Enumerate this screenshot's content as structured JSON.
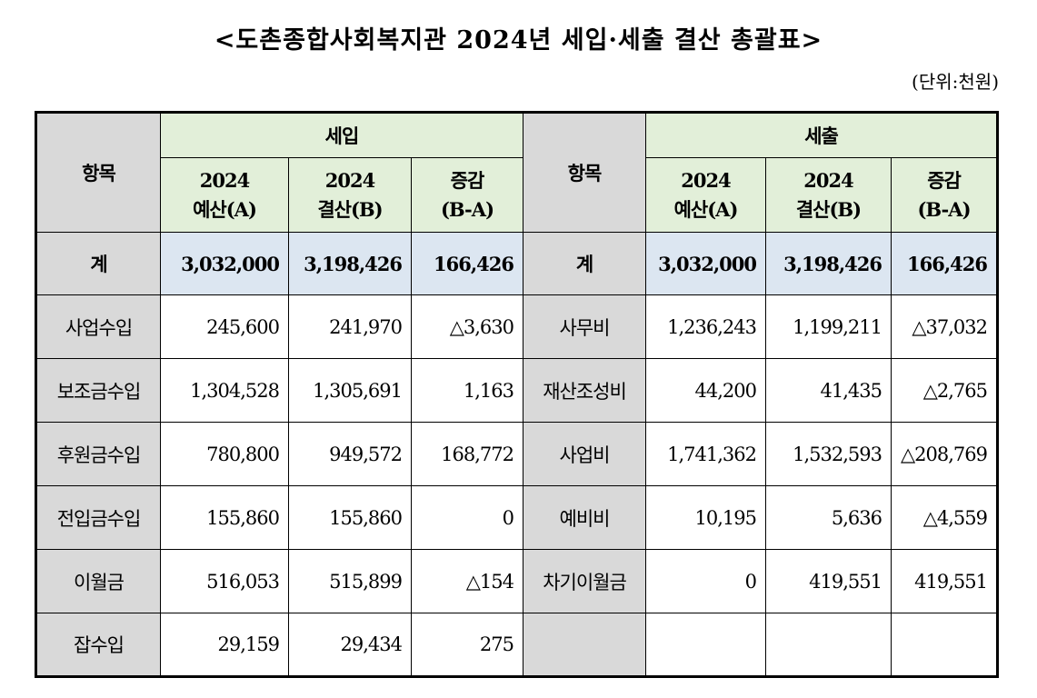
{
  "title": "<도촌종합사회복지관 2024년 세입·세출 결산 총괄표>",
  "unit": "(단위:천원)",
  "header": {
    "item_label": "항목",
    "revenue_label": "세입",
    "expense_label": "세출",
    "col_budget": [
      "2024",
      "예산(A)"
    ],
    "col_settle": [
      "2024",
      "결산(B)"
    ],
    "col_diff": [
      "증감",
      "(B-A)"
    ]
  },
  "total": {
    "label": "계",
    "rev_budget": "3,032,000",
    "rev_settle": "3,198,426",
    "rev_diff": "166,426",
    "exp_budget": "3,032,000",
    "exp_settle": "3,198,426",
    "exp_diff": "166,426"
  },
  "rows": [
    {
      "rev_item": "사업수입",
      "rev_budget": "245,600",
      "rev_settle": "241,970",
      "rev_diff": "△3,630",
      "exp_item": "사무비",
      "exp_budget": "1,236,243",
      "exp_settle": "1,199,211",
      "exp_diff": "△37,032"
    },
    {
      "rev_item": "보조금수입",
      "rev_budget": "1,304,528",
      "rev_settle": "1,305,691",
      "rev_diff": "1,163",
      "exp_item": "재산조성비",
      "exp_budget": "44,200",
      "exp_settle": "41,435",
      "exp_diff": "△2,765"
    },
    {
      "rev_item": "후원금수입",
      "rev_budget": "780,800",
      "rev_settle": "949,572",
      "rev_diff": "168,772",
      "exp_item": "사업비",
      "exp_budget": "1,741,362",
      "exp_settle": "1,532,593",
      "exp_diff": "△208,769"
    },
    {
      "rev_item": "전입금수입",
      "rev_budget": "155,860",
      "rev_settle": "155,860",
      "rev_diff": "0",
      "exp_item": "예비비",
      "exp_budget": "10,195",
      "exp_settle": "5,636",
      "exp_diff": "△4,559"
    },
    {
      "rev_item": "이월금",
      "rev_budget": "516,053",
      "rev_settle": "515,899",
      "rev_diff": "△154",
      "exp_item": "차기이월금",
      "exp_budget": "0",
      "exp_settle": "419,551",
      "exp_diff": "419,551"
    },
    {
      "rev_item": "잡수입",
      "rev_budget": "29,159",
      "rev_settle": "29,434",
      "rev_diff": "275",
      "exp_item": "",
      "exp_budget": "",
      "exp_settle": "",
      "exp_diff": ""
    }
  ]
}
